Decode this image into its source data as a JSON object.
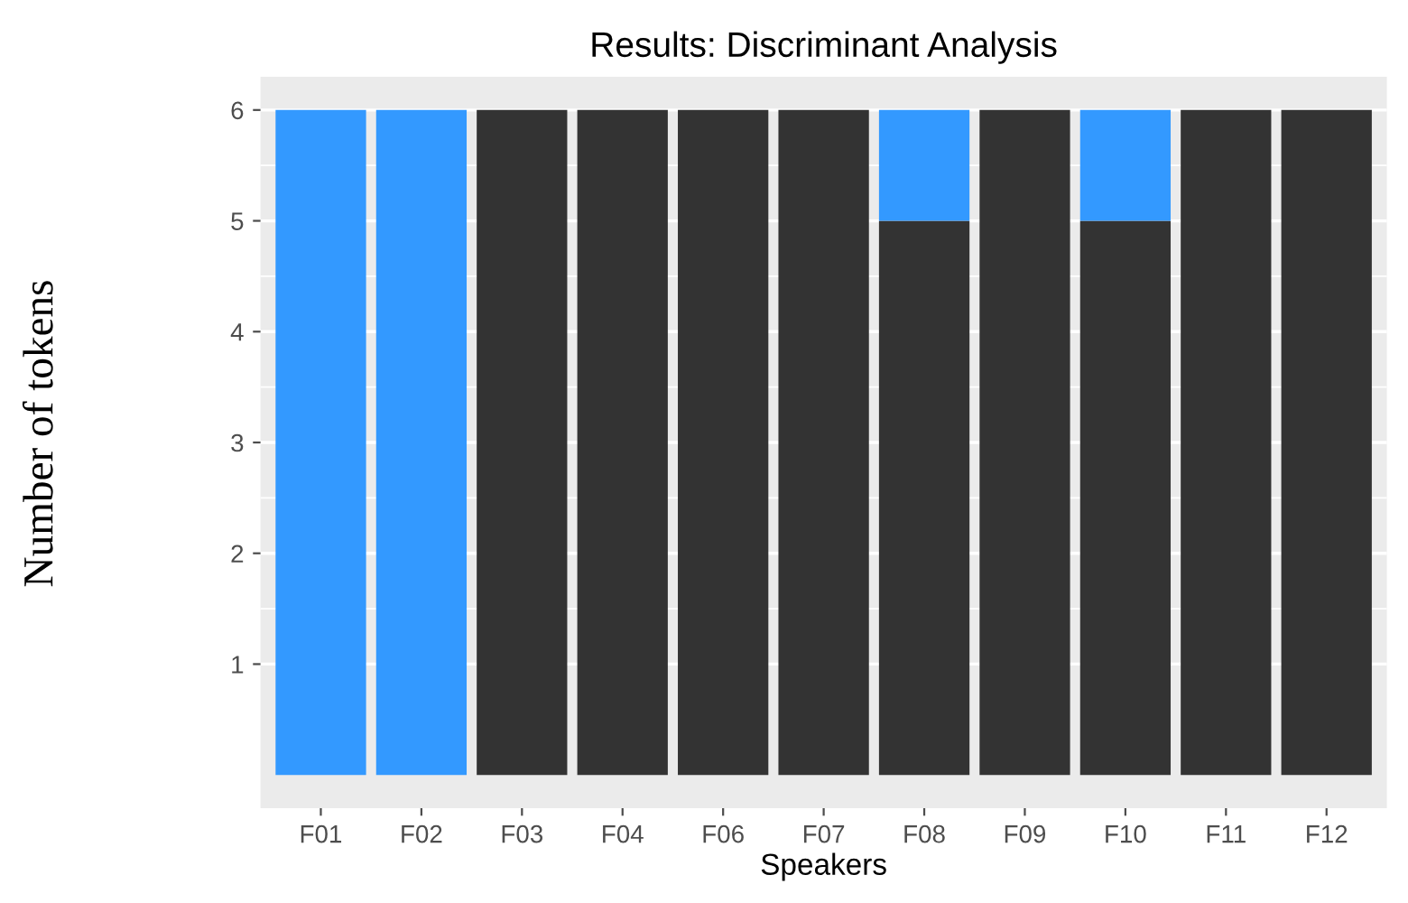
{
  "chart_data": {
    "type": "bar",
    "title": "Results: Discriminant Analysis",
    "xlabel": "Speakers",
    "ylabel": "Number of tokens",
    "categories": [
      "F01",
      "F02",
      "F03",
      "F04",
      "F06",
      "F07",
      "F08",
      "F09",
      "F10",
      "F11",
      "F12"
    ],
    "stacked": true,
    "series": [
      {
        "color": "#333333",
        "values": [
          0,
          0,
          6,
          6,
          6,
          6,
          5,
          6,
          5,
          6,
          6
        ]
      },
      {
        "color": "#3399ff",
        "values": [
          6,
          6,
          0,
          0,
          0,
          0,
          1,
          0,
          1,
          0,
          0
        ]
      }
    ],
    "ylim": [
      -0.3,
      6.3
    ],
    "yticks": [
      1,
      2,
      3,
      4,
      5,
      6
    ],
    "grid": "y",
    "legend": false
  }
}
